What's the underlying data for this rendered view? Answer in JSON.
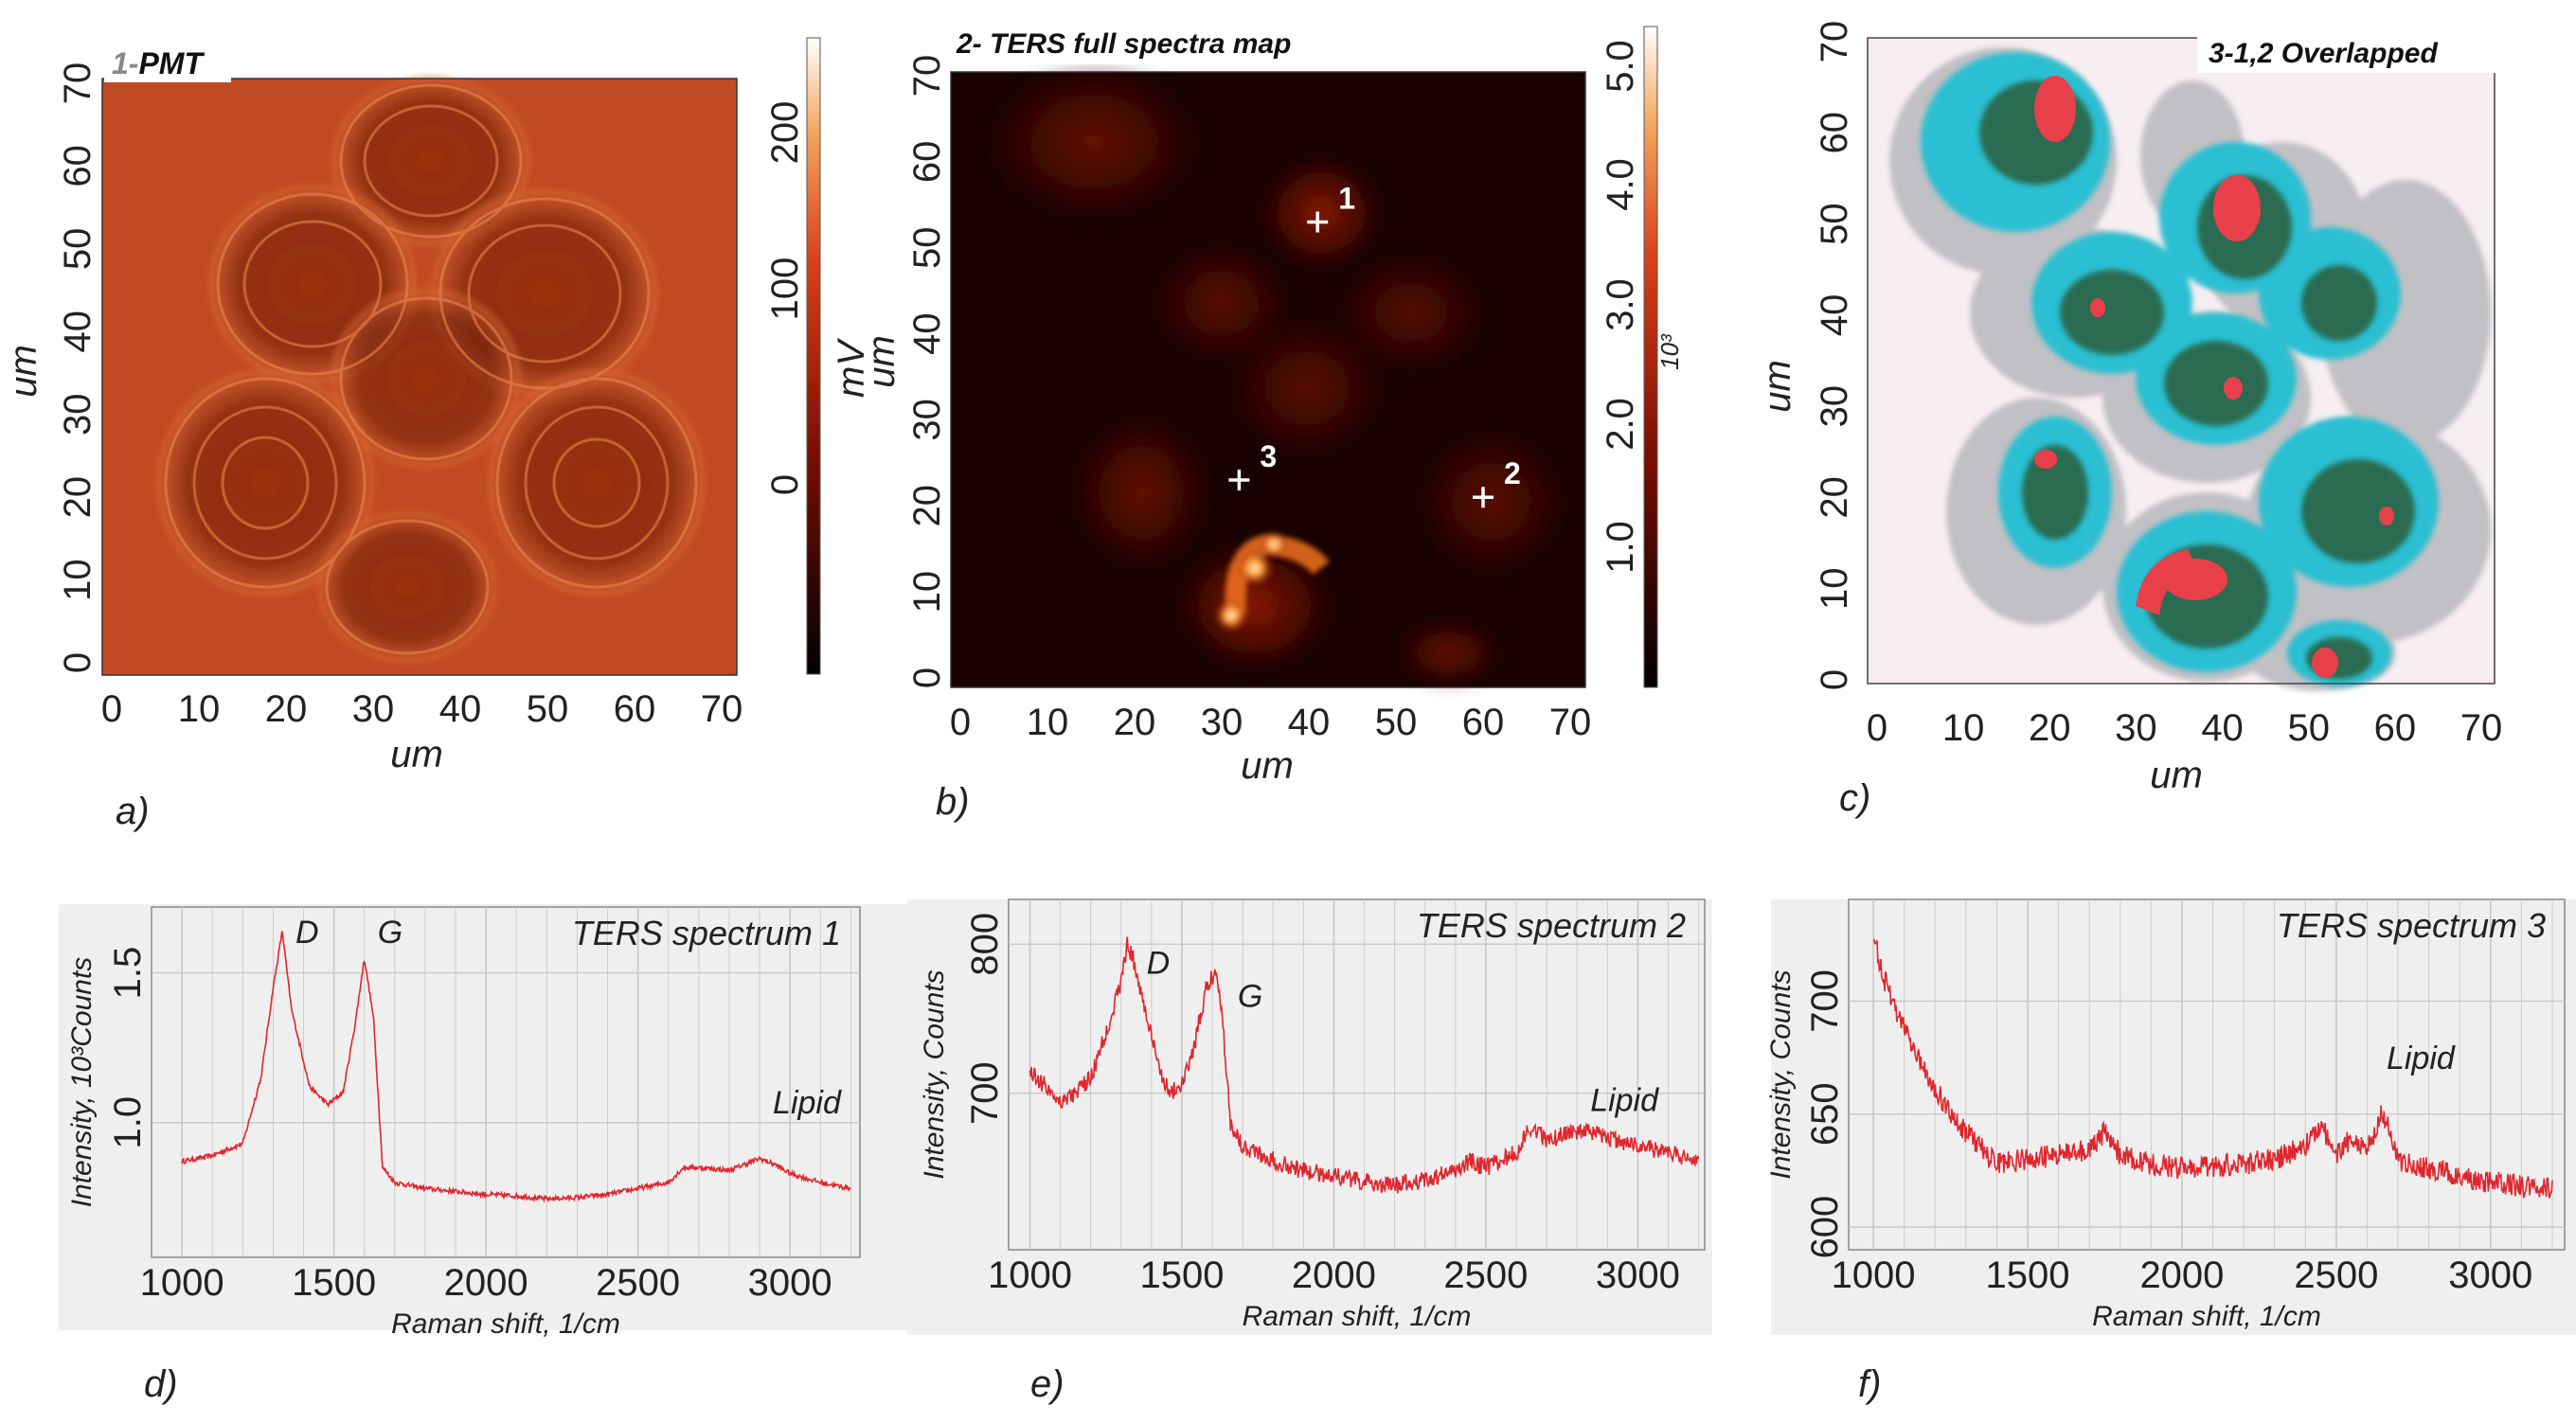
{
  "colors": {
    "hot_dark": "#150000",
    "hot_mid": "#c23a10",
    "hot_bright": "#ffe8a0",
    "spectrum_red": "#e0262e",
    "overlap_cyan": "#2cbfd2",
    "overlap_green": "#2a5d3a",
    "overlap_red": "#e8404a",
    "overlap_gray": "#b8b8bc",
    "panel_bg": "#efefef",
    "grid": "#c8c8c8"
  },
  "panels": {
    "a": {
      "label": "a)",
      "title_num": "1-",
      "title_text": "PMT",
      "xlabel": "um",
      "ylabel": "um",
      "xticks": [
        "0",
        "10",
        "20",
        "30",
        "40",
        "50",
        "60",
        "70"
      ],
      "yticks": [
        "0",
        "10",
        "20",
        "30",
        "40",
        "50",
        "60",
        "70"
      ],
      "colorbar_label": "mV",
      "colorbar_ticks": [
        "200",
        "100",
        "0"
      ]
    },
    "b": {
      "label": "b)",
      "title": "2- TERS full spectra map",
      "xlabel": "um",
      "ylabel": "um",
      "xticks": [
        "0",
        "10",
        "20",
        "30",
        "40",
        "50",
        "60",
        "70"
      ],
      "yticks": [
        "0",
        "10",
        "20",
        "30",
        "40",
        "50",
        "60",
        "70"
      ],
      "colorbar_label": "10³",
      "colorbar_ticks": [
        "5.0",
        "4.0",
        "3.0",
        "2.0",
        "1.0"
      ],
      "markers": [
        {
          "label": "1",
          "x": 41,
          "y": 53
        },
        {
          "label": "2",
          "x": 60,
          "y": 21
        },
        {
          "label": "3",
          "x": 32,
          "y": 23
        }
      ]
    },
    "c": {
      "label": "c)",
      "title": "3-1,2 Overlapped",
      "xlabel": "um",
      "ylabel": "um",
      "xticks": [
        "0",
        "10",
        "20",
        "30",
        "40",
        "50",
        "60",
        "70"
      ],
      "yticks": [
        "0",
        "10",
        "20",
        "30",
        "40",
        "50",
        "60",
        "70"
      ]
    }
  },
  "chart_data": [
    {
      "type": "line",
      "panel": "d)",
      "title": "TERS spectrum 1",
      "xlabel": "Raman shift, 1/cm",
      "ylabel": "Intensity, 10³Counts",
      "xticks": [
        "1000",
        "1500",
        "2000",
        "2500",
        "3000"
      ],
      "yticks": [
        "1.0",
        "1.5"
      ],
      "xlim": [
        900,
        3230
      ],
      "ylim": [
        0.55,
        1.72
      ],
      "annotations": [
        {
          "text": "D",
          "x": 1330,
          "y": 1.6
        },
        {
          "text": "G",
          "x": 1600,
          "y": 1.6
        },
        {
          "text": "Lipid",
          "x": 2900,
          "y": 1.03
        }
      ],
      "series": [
        {
          "name": "TERS spectrum 1",
          "x": [
            1000,
            1100,
            1200,
            1260,
            1300,
            1330,
            1360,
            1420,
            1480,
            1530,
            1570,
            1600,
            1630,
            1660,
            1700,
            1800,
            1900,
            2000,
            2100,
            2200,
            2300,
            2400,
            2500,
            2600,
            2650,
            2700,
            2800,
            2850,
            2900,
            2950,
            3000,
            3100,
            3200
          ],
          "y": [
            0.87,
            0.89,
            0.93,
            1.15,
            1.45,
            1.64,
            1.38,
            1.12,
            1.06,
            1.1,
            1.33,
            1.55,
            1.35,
            0.85,
            0.8,
            0.78,
            0.77,
            0.76,
            0.755,
            0.745,
            0.75,
            0.76,
            0.78,
            0.8,
            0.85,
            0.85,
            0.84,
            0.86,
            0.88,
            0.86,
            0.83,
            0.8,
            0.78
          ],
          "noise": 0.008
        }
      ]
    },
    {
      "type": "line",
      "panel": "e)",
      "title": "TERS spectrum 2",
      "xlabel": "Raman shift, 1/cm",
      "ylabel": "Intensity, Counts",
      "xticks": [
        "1000",
        "1500",
        "2000",
        "2500",
        "3000"
      ],
      "yticks": [
        "700",
        "800"
      ],
      "xlim": [
        930,
        3220
      ],
      "ylim": [
        595,
        830
      ],
      "annotations": [
        {
          "text": "D",
          "x": 1340,
          "y": 780
        },
        {
          "text": "G",
          "x": 1640,
          "y": 758
        },
        {
          "text": "Lipid",
          "x": 2800,
          "y": 688
        }
      ],
      "series": [
        {
          "name": "TERS spectrum 2",
          "x": [
            1000,
            1050,
            1100,
            1150,
            1200,
            1250,
            1300,
            1320,
            1340,
            1380,
            1420,
            1460,
            1500,
            1540,
            1580,
            1610,
            1630,
            1660,
            1700,
            1750,
            1800,
            1900,
            2000,
            2100,
            2200,
            2300,
            2400,
            2450,
            2500,
            2600,
            2650,
            2700,
            2750,
            2800,
            2900,
            3000,
            3100,
            3200
          ],
          "y": [
            715,
            705,
            695,
            700,
            710,
            740,
            775,
            800,
            790,
            755,
            720,
            700,
            705,
            730,
            770,
            782,
            760,
            680,
            665,
            660,
            655,
            648,
            645,
            640,
            638,
            642,
            648,
            655,
            650,
            660,
            678,
            668,
            672,
            675,
            670,
            665,
            660,
            655
          ],
          "noise": 6
        }
      ]
    },
    {
      "type": "line",
      "panel": "f)",
      "title": "TERS spectrum 3",
      "xlabel": "Raman shift, 1/cm",
      "ylabel": "Intensity, Counts",
      "xticks": [
        "1000",
        "1500",
        "2000",
        "2500",
        "3000"
      ],
      "yticks": [
        "600",
        "650",
        "700"
      ],
      "xlim": [
        920,
        3240
      ],
      "ylim": [
        590,
        745
      ],
      "annotations": [
        {
          "text": "Lipid",
          "x": 2620,
          "y": 670
        }
      ],
      "series": [
        {
          "name": "TERS spectrum 3",
          "x": [
            1000,
            1030,
            1060,
            1100,
            1150,
            1200,
            1250,
            1300,
            1350,
            1400,
            1500,
            1600,
            1700,
            1750,
            1800,
            1900,
            2000,
            2100,
            2200,
            2300,
            2400,
            2450,
            2500,
            2550,
            2600,
            2650,
            2700,
            2800,
            2900,
            3000,
            3100,
            3200
          ],
          "y": [
            730,
            712,
            700,
            688,
            674,
            662,
            650,
            642,
            635,
            628,
            630,
            632,
            634,
            642,
            632,
            628,
            626,
            627,
            628,
            630,
            636,
            646,
            632,
            640,
            634,
            652,
            630,
            626,
            622,
            620,
            618,
            617
          ],
          "noise": 5
        }
      ]
    }
  ]
}
